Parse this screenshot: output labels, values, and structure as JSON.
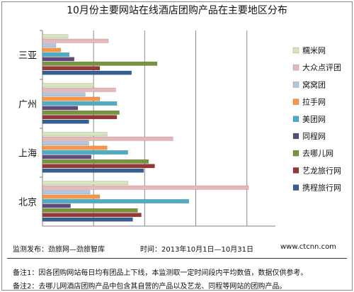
{
  "chart_data": {
    "type": "bar",
    "orientation": "horizontal",
    "title": "10月份主要网站在线酒店团购产品在主要地区分布",
    "categories": [
      "三亚",
      "广州",
      "上海",
      "北京"
    ],
    "series": [
      {
        "name": "糯米网",
        "color": "#d7e4bd",
        "values": [
          21,
          42,
          53,
          70
        ]
      },
      {
        "name": "大众点评团",
        "color": "#e6b9b8",
        "values": [
          54,
          60,
          107,
          169
        ]
      },
      {
        "name": "窝窝团",
        "color": "#b7c4de",
        "values": [
          11,
          35,
          38,
          39
        ]
      },
      {
        "name": "拉手网",
        "color": "#f79646",
        "values": [
          15,
          47,
          53,
          47
        ]
      },
      {
        "name": "美团网",
        "color": "#4bacc6",
        "values": [
          22,
          61,
          70,
          120
        ]
      },
      {
        "name": "同程网",
        "color": "#604a7b",
        "values": [
          26,
          29,
          40,
          23
        ]
      },
      {
        "name": "去哪儿网",
        "color": "#77933c",
        "values": [
          94,
          63,
          87,
          78
        ]
      },
      {
        "name": "艺龙旅行网",
        "color": "#953735",
        "values": [
          47,
          61,
          92,
          81
        ]
      },
      {
        "name": "携程旅行网",
        "color": "#376092",
        "values": [
          73,
          38,
          83,
          74
        ]
      }
    ],
    "xlim": [
      0,
      191
    ]
  },
  "footer": {
    "source": "监测发布：劲旅网—劲旅智库",
    "period": "时间：2013年10月1日—10月31日",
    "site": "www.ctcnn.com",
    "note1": "备注1：因各团购网站每日均有团品上下线，本监测取一定时间段内平均数值，数据仅供参考。",
    "note2": "备注2：去哪儿网酒店团购产品中包含其自营的产品以及艺龙、同程等网站的团购产品。"
  }
}
